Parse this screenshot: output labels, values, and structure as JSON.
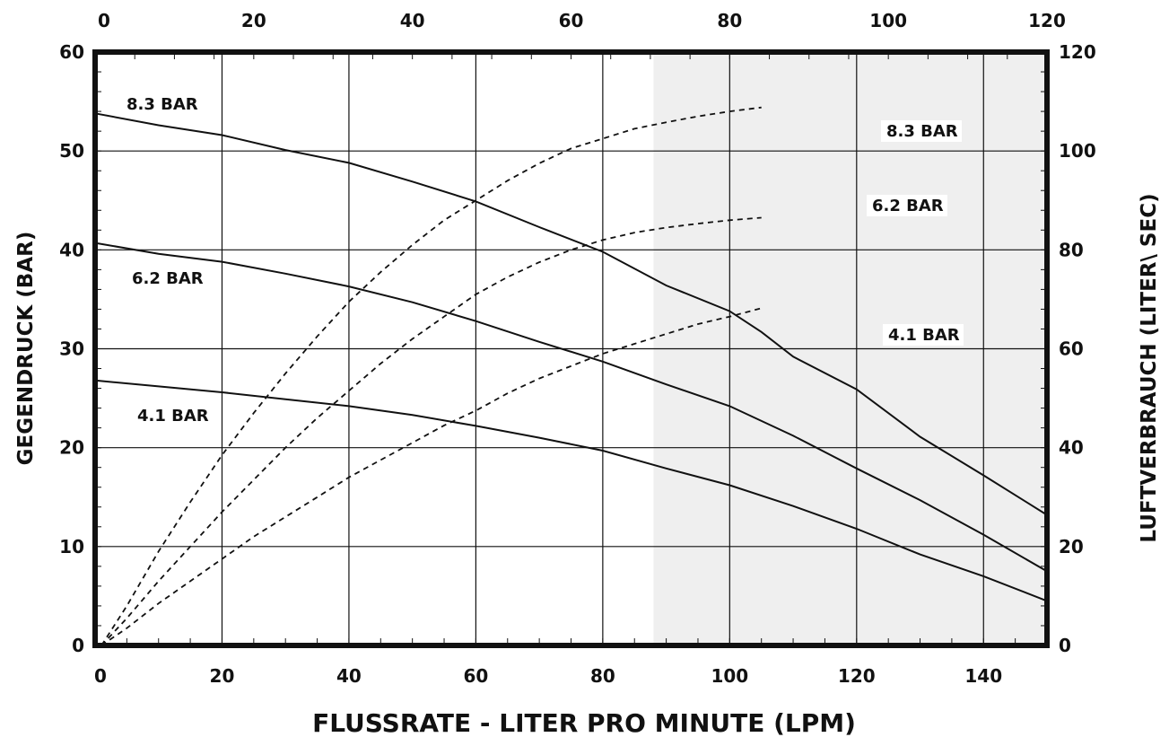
{
  "chart_data": {
    "type": "line",
    "xlabel_bottom": "FLUSSRATE - LITER PRO MINUTE (LPM)",
    "ylabel_left": "GEGENDRUCK (BAR)",
    "ylabel_right": "LUFTVERBRAUCH (LITER\\ SEC)",
    "x_bottom": {
      "lim": [
        0,
        150
      ],
      "ticks": [
        0,
        20,
        40,
        60,
        80,
        100,
        120,
        140
      ]
    },
    "x_top": {
      "lim": [
        0,
        120
      ],
      "ticks": [
        0,
        20,
        40,
        60,
        80,
        100,
        120
      ]
    },
    "y_left": {
      "lim": [
        0,
        60
      ],
      "ticks": [
        0,
        10,
        20,
        30,
        40,
        50,
        60
      ]
    },
    "y_right": {
      "lim": [
        0,
        120
      ],
      "ticks": [
        0,
        20,
        40,
        60,
        80,
        100,
        120
      ]
    },
    "grid": true,
    "shaded_region_x": [
      88,
      150
    ],
    "pressure_series": [
      {
        "label": "8.3 BAR",
        "axis": "left",
        "style": "solid",
        "points": [
          [
            0,
            53.8
          ],
          [
            10,
            52.6
          ],
          [
            20,
            51.6
          ],
          [
            30,
            50.1
          ],
          [
            40,
            48.8
          ],
          [
            50,
            46.9
          ],
          [
            60,
            44.9
          ],
          [
            70,
            42.3
          ],
          [
            80,
            39.8
          ],
          [
            90,
            36.4
          ],
          [
            100,
            33.8
          ],
          [
            105,
            31.7
          ],
          [
            110,
            29.2
          ],
          [
            120,
            25.9
          ],
          [
            130,
            21.1
          ],
          [
            140,
            17.2
          ],
          [
            150,
            13.2
          ]
        ]
      },
      {
        "label": "6.2 BAR",
        "axis": "left",
        "style": "solid",
        "points": [
          [
            0,
            40.7
          ],
          [
            10,
            39.6
          ],
          [
            20,
            38.8
          ],
          [
            30,
            37.6
          ],
          [
            40,
            36.3
          ],
          [
            50,
            34.7
          ],
          [
            60,
            32.8
          ],
          [
            70,
            30.7
          ],
          [
            80,
            28.7
          ],
          [
            90,
            26.4
          ],
          [
            100,
            24.2
          ],
          [
            105,
            22.7
          ],
          [
            110,
            21.2
          ],
          [
            120,
            17.9
          ],
          [
            130,
            14.7
          ],
          [
            140,
            11.2
          ],
          [
            150,
            7.5
          ]
        ]
      },
      {
        "label": "4.1 BAR",
        "axis": "left",
        "style": "solid",
        "points": [
          [
            0,
            26.8
          ],
          [
            10,
            26.2
          ],
          [
            20,
            25.6
          ],
          [
            30,
            24.9
          ],
          [
            40,
            24.2
          ],
          [
            50,
            23.3
          ],
          [
            60,
            22.2
          ],
          [
            70,
            21.0
          ],
          [
            80,
            19.7
          ],
          [
            90,
            17.9
          ],
          [
            100,
            16.2
          ],
          [
            110,
            14.1
          ],
          [
            120,
            11.8
          ],
          [
            130,
            9.2
          ],
          [
            140,
            7.0
          ],
          [
            150,
            4.5
          ]
        ]
      }
    ],
    "air_consumption_series": [
      {
        "label": "8.3 BAR",
        "axis": "right",
        "style": "dashed",
        "points": [
          [
            1,
            0
          ],
          [
            5,
            8
          ],
          [
            10,
            19
          ],
          [
            15,
            29
          ],
          [
            20,
            38.5
          ],
          [
            25,
            47
          ],
          [
            30,
            55
          ],
          [
            35,
            62.5
          ],
          [
            40,
            69.5
          ],
          [
            45,
            75.5
          ],
          [
            50,
            81
          ],
          [
            55,
            86
          ],
          [
            60,
            90
          ],
          [
            65,
            94
          ],
          [
            70,
            97.5
          ],
          [
            75,
            100.5
          ],
          [
            80,
            102.5
          ],
          [
            85,
            104.5
          ],
          [
            90,
            105.8
          ],
          [
            95,
            107
          ],
          [
            100,
            108
          ],
          [
            105,
            108.8
          ]
        ]
      },
      {
        "label": "6.2 BAR",
        "axis": "right",
        "style": "dashed",
        "points": [
          [
            1,
            0
          ],
          [
            5,
            5.5
          ],
          [
            10,
            13
          ],
          [
            15,
            20
          ],
          [
            20,
            27
          ],
          [
            25,
            33.5
          ],
          [
            30,
            40
          ],
          [
            35,
            46
          ],
          [
            40,
            51.5
          ],
          [
            45,
            57
          ],
          [
            50,
            62
          ],
          [
            55,
            66.5
          ],
          [
            60,
            71
          ],
          [
            65,
            74.5
          ],
          [
            70,
            77.5
          ],
          [
            75,
            80
          ],
          [
            80,
            82
          ],
          [
            85,
            83.5
          ],
          [
            90,
            84.5
          ],
          [
            95,
            85.3
          ],
          [
            100,
            86
          ],
          [
            105,
            86.5
          ]
        ]
      },
      {
        "label": "4.1 BAR",
        "axis": "right",
        "style": "dashed",
        "points": [
          [
            1,
            0
          ],
          [
            5,
            3.5
          ],
          [
            10,
            8.5
          ],
          [
            15,
            13
          ],
          [
            20,
            17.5
          ],
          [
            25,
            22
          ],
          [
            30,
            26
          ],
          [
            35,
            30
          ],
          [
            40,
            34
          ],
          [
            45,
            37.5
          ],
          [
            50,
            41
          ],
          [
            55,
            44.5
          ],
          [
            60,
            47.5
          ],
          [
            65,
            51
          ],
          [
            70,
            54
          ],
          [
            75,
            56.5
          ],
          [
            80,
            59
          ],
          [
            85,
            61
          ],
          [
            90,
            63
          ],
          [
            95,
            65
          ],
          [
            100,
            66.5
          ],
          [
            105,
            68.2
          ]
        ]
      }
    ]
  }
}
